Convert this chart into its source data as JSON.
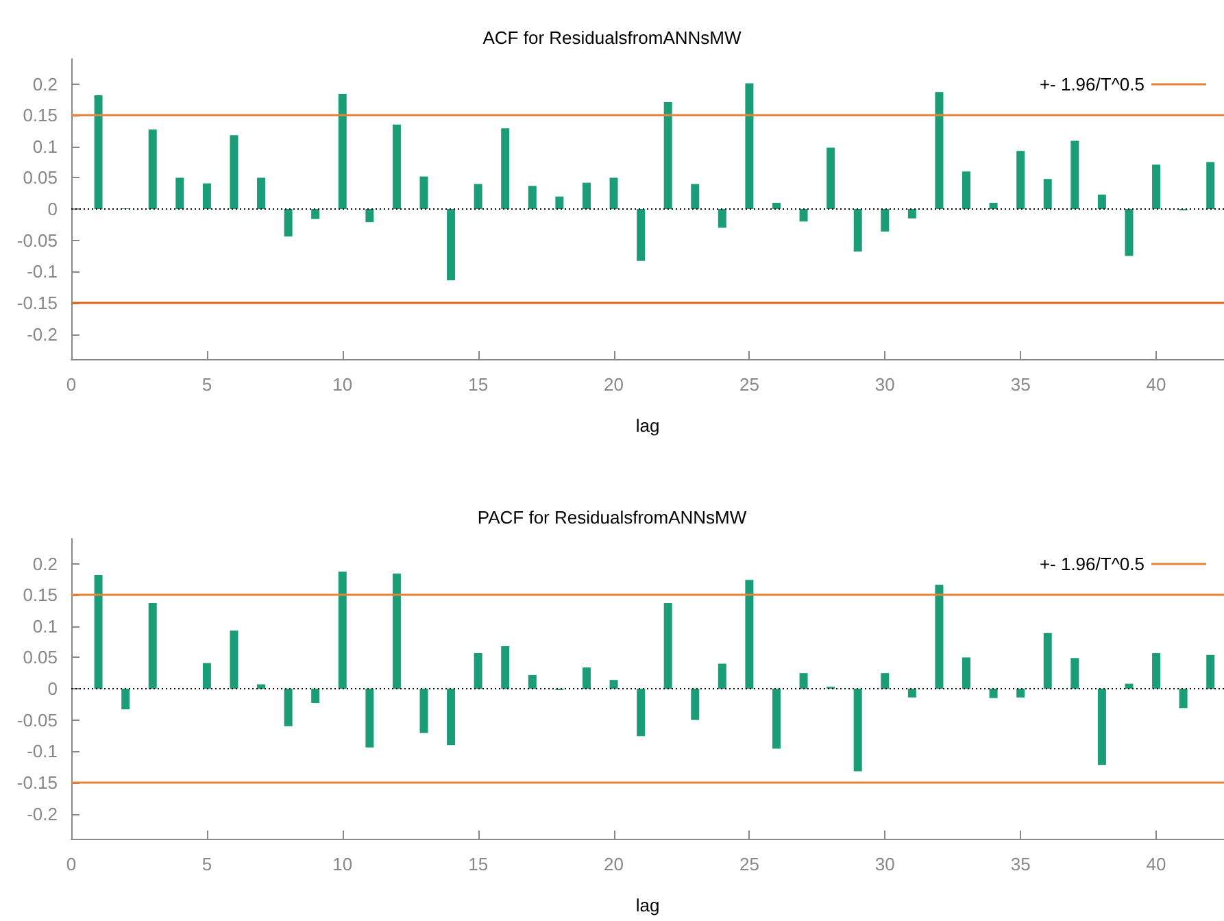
{
  "chart_data": [
    {
      "type": "bar",
      "title": "ACF for ResidualsfromANNsMW",
      "xlabel": "lag",
      "x": [
        1,
        2,
        3,
        4,
        5,
        6,
        7,
        8,
        9,
        10,
        11,
        12,
        13,
        14,
        15,
        16,
        17,
        18,
        19,
        20,
        21,
        22,
        23,
        24,
        25,
        26,
        27,
        28,
        29,
        30,
        31,
        32,
        33,
        34,
        35,
        36,
        37,
        38,
        39,
        40,
        41,
        42
      ],
      "series": [
        {
          "color": "#1b9e77",
          "values": [
            0.182,
            0.001,
            0.127,
            0.05,
            0.041,
            0.118,
            0.05,
            -0.044,
            -0.016,
            0.184,
            -0.021,
            0.135,
            0.052,
            -0.114,
            0.04,
            0.129,
            0.037,
            0.02,
            0.042,
            0.05,
            -0.083,
            0.171,
            0.04,
            -0.03,
            0.201,
            0.01,
            -0.02,
            0.098,
            -0.068,
            -0.036,
            -0.015,
            0.187,
            0.06,
            0.01,
            0.093,
            0.048,
            0.109,
            0.023,
            -0.075,
            0.071,
            -0.002,
            0.075
          ]
        }
      ],
      "xlim": [
        0,
        42.5
      ],
      "xticks": [
        0,
        5,
        10,
        15,
        20,
        25,
        30,
        35,
        40
      ],
      "ylim": [
        -0.24,
        0.24
      ],
      "yticks": [
        -0.2,
        -0.15,
        -0.1,
        -0.05,
        0,
        0.05,
        0.1,
        0.15,
        0.2
      ],
      "ref_lines": [
        {
          "axis": "y",
          "value": 0.151,
          "label": "+- 1.96/T^0.5",
          "color": "#e8823a"
        },
        {
          "axis": "y",
          "value": -0.151,
          "color": "#e0661a"
        },
        {
          "axis": "y",
          "value": 0,
          "color": "#000000",
          "line_style": "dotted"
        }
      ],
      "legend": "top right",
      "grid": false
    },
    {
      "type": "bar",
      "title": "PACF for ResidualsfromANNsMW",
      "xlabel": "lag",
      "x": [
        1,
        2,
        3,
        4,
        5,
        6,
        7,
        8,
        9,
        10,
        11,
        12,
        13,
        14,
        15,
        16,
        17,
        18,
        19,
        20,
        21,
        22,
        23,
        24,
        25,
        26,
        27,
        28,
        29,
        30,
        31,
        32,
        33,
        34,
        35,
        36,
        37,
        38,
        39,
        40,
        41,
        42
      ],
      "series": [
        {
          "color": "#1b9e77",
          "values": [
            0.182,
            -0.033,
            0.137,
            0,
            0.041,
            0.093,
            0.007,
            -0.06,
            -0.023,
            0.187,
            -0.094,
            0.184,
            -0.071,
            -0.09,
            0.057,
            0.068,
            0.022,
            -0.002,
            0.034,
            0.014,
            -0.076,
            0.137,
            -0.05,
            0.04,
            0.174,
            -0.096,
            0.025,
            0.003,
            -0.132,
            0.025,
            -0.014,
            0.166,
            0.05,
            -0.015,
            -0.014,
            0.089,
            0.049,
            -0.122,
            0.008,
            0.057,
            -0.031,
            0.054
          ]
        }
      ],
      "xlim": [
        0,
        42.5
      ],
      "xticks": [
        0,
        5,
        10,
        15,
        20,
        25,
        30,
        35,
        40
      ],
      "ylim": [
        -0.24,
        0.24
      ],
      "yticks": [
        -0.2,
        -0.15,
        -0.1,
        -0.05,
        0,
        0.05,
        0.1,
        0.15,
        0.2
      ],
      "ref_lines": [
        {
          "axis": "y",
          "value": 0.151,
          "label": "+- 1.96/T^0.5",
          "color": "#e8823a"
        },
        {
          "axis": "y",
          "value": -0.151,
          "color": "#e8823a"
        },
        {
          "axis": "y",
          "value": 0,
          "color": "#000000",
          "line_style": "dotted"
        }
      ],
      "legend": "top right",
      "grid": false
    }
  ]
}
